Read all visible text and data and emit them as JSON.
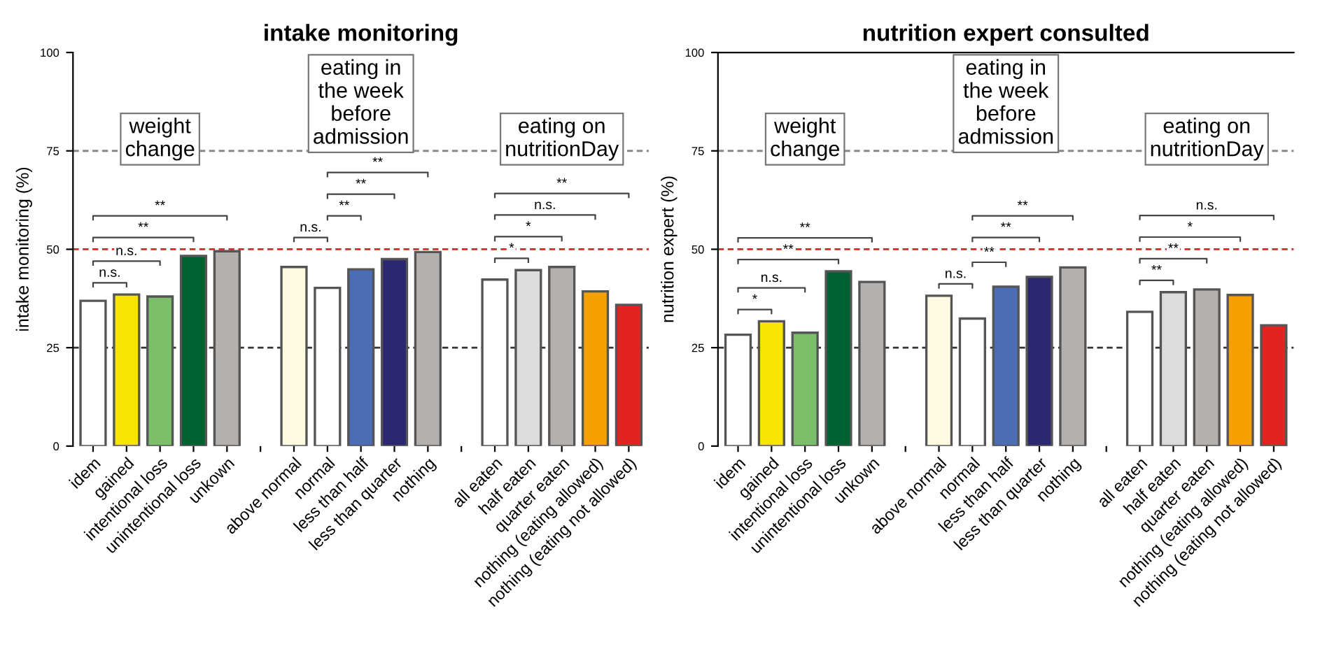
{
  "chart_data": [
    {
      "type": "bar",
      "title": "intake monitoring",
      "ylabel": "intake monitoring (%)",
      "categories": [
        "idem",
        "gained",
        "intentional loss",
        "unintentional loss",
        "unkown",
        null,
        "above normal",
        "normal",
        "less than half",
        "less than quarter",
        "nothing",
        null,
        "all eaten",
        "half eaten",
        "quarter eaten",
        "nothing (eating allowed)",
        "nothing (eating not allowed)"
      ],
      "values": [
        36.9,
        38.5,
        38.0,
        48.3,
        49.5,
        null,
        45.5,
        40.2,
        44.9,
        47.5,
        49.3,
        null,
        42.3,
        44.7,
        45.5,
        39.3,
        35.9
      ],
      "colors": [
        "#ffffff",
        "#f7e400",
        "#7bbf6a",
        "#006230",
        "#b3b0ae",
        "#ffffff",
        "#fffbe3",
        "#ffffff",
        "#4a6db5",
        "#2b2870",
        "#b3b0ae",
        "#ffffff",
        "#ffffff",
        "#dcdcdc",
        "#b3b0ae",
        "#f5a000",
        "#e32322"
      ],
      "ylim": [
        0,
        100
      ],
      "yticks": [
        0,
        25,
        50,
        75,
        100
      ],
      "ref_lines": [
        {
          "axis": "y",
          "value": 25,
          "color": "#333333",
          "line_style": "dashed"
        },
        {
          "axis": "y",
          "value": 50,
          "color": "#d62728",
          "line_style": "dashed"
        },
        {
          "axis": "y",
          "value": 75,
          "color": "#888888",
          "line_style": "dashed"
        }
      ],
      "annotations": [
        "weight\nchange",
        "eating in\nthe week\nbefore\nadmission",
        "eating on\nnutritionDay",
        "n.s.",
        "n.s.",
        "**",
        "**",
        "n.s.",
        "**",
        "**",
        "**",
        "*",
        "*",
        "n.s.",
        "**"
      ]
    },
    {
      "type": "bar",
      "title": "nutrition expert consulted",
      "ylabel": "nutrition expert (%)",
      "categories": [
        "idem",
        "gained",
        "intentional loss",
        "unintentional loss",
        "unkown",
        null,
        "above normal",
        "normal",
        "less than half",
        "less than quarter",
        "nothing",
        null,
        "all eaten",
        "half eaten",
        "quarter eaten",
        "nothing (eating allowed)",
        "nothing (eating not allowed)"
      ],
      "values": [
        28.3,
        31.7,
        28.8,
        44.4,
        41.7,
        null,
        38.2,
        32.4,
        40.5,
        43.0,
        45.4,
        null,
        34.1,
        39.1,
        39.8,
        38.4,
        30.7
      ],
      "colors": [
        "#ffffff",
        "#f7e400",
        "#7bbf6a",
        "#006230",
        "#b3b0ae",
        "#ffffff",
        "#fffbe3",
        "#ffffff",
        "#4a6db5",
        "#2b2870",
        "#b3b0ae",
        "#ffffff",
        "#ffffff",
        "#dcdcdc",
        "#b3b0ae",
        "#f5a000",
        "#e32322"
      ],
      "ylim": [
        0,
        100
      ],
      "yticks": [
        0,
        25,
        50,
        75,
        100
      ],
      "ref_lines": [
        {
          "axis": "y",
          "value": 25,
          "color": "#333333",
          "line_style": "dashed"
        },
        {
          "axis": "y",
          "value": 50,
          "color": "#d62728",
          "line_style": "dashed"
        },
        {
          "axis": "y",
          "value": 75,
          "color": "#888888",
          "line_style": "dashed"
        }
      ],
      "annotations": [
        "weight\nchange",
        "eating in\nthe week\nbefore\nadmission",
        "eating on\nnutritionDay",
        "*",
        "n.s.",
        "**",
        "**",
        "n.s.",
        "**",
        "**",
        "**",
        "**",
        "**",
        "*",
        "n.s."
      ]
    }
  ]
}
